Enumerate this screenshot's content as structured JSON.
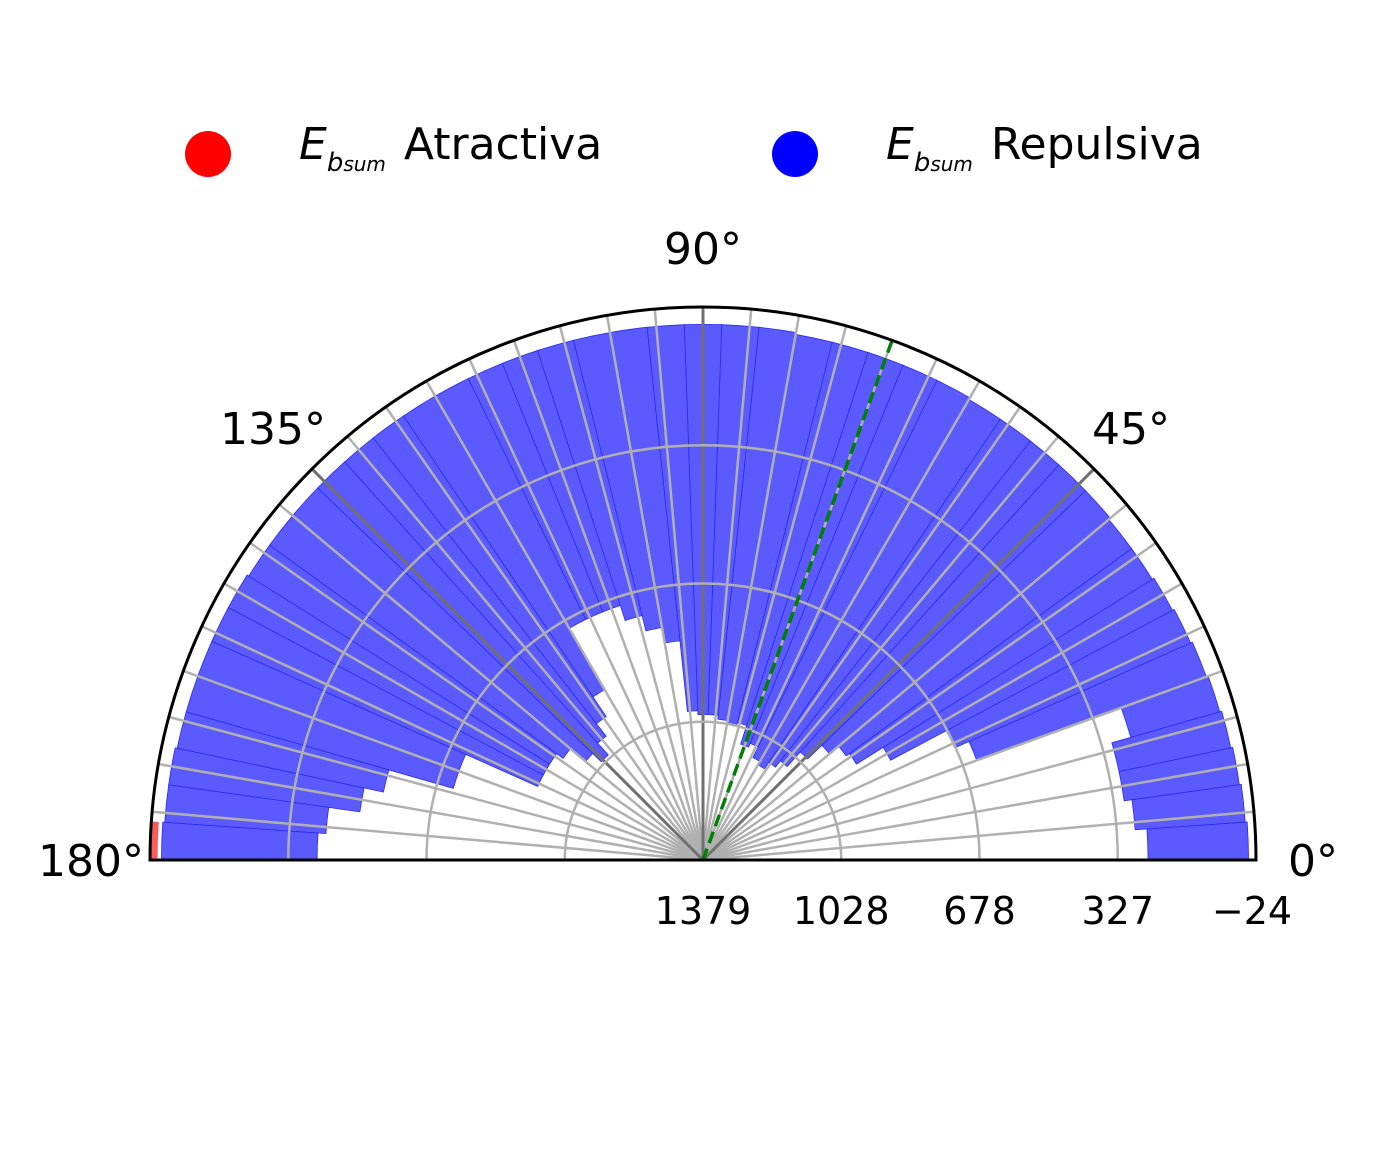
{
  "chart_data": {
    "type": "polar-bar",
    "legend": [
      {
        "symbol": "E",
        "subscript": "b",
        "subsubscript": "sum",
        "label": "Atractiva",
        "color": "#ff0000"
      },
      {
        "symbol": "E",
        "subscript": "b",
        "subsubscript": "sum",
        "label": "Repulsiva",
        "color": "#0000ff"
      }
    ],
    "theta_range": [
      0,
      180
    ],
    "theta_tick_labels": [
      "0°",
      "45°",
      "90°",
      "135°",
      "180°"
    ],
    "radial_tick_labels": [
      "1379",
      "1028",
      "678",
      "327",
      "−24"
    ],
    "radial_scale": {
      "center_value": 1379,
      "edge_value": -24
    },
    "bar_width_deg": 4,
    "bar_color": "#5a5aff",
    "attractive_color": "#ff5a5a",
    "bar_centers_deg": [
      2,
      6,
      10,
      14,
      18,
      22,
      26,
      30,
      34,
      38,
      42,
      46,
      50,
      54,
      58,
      62,
      66,
      70,
      74,
      78,
      82,
      86,
      90,
      94,
      98,
      102,
      106,
      110,
      114,
      118,
      122,
      126,
      130,
      134,
      138,
      142,
      146,
      150,
      154,
      158,
      162,
      166,
      170,
      174,
      178
    ],
    "repulsive_outer": [
      -5,
      0,
      5,
      10,
      15,
      20,
      25,
      30,
      35,
      35,
      30,
      30,
      30,
      30,
      30,
      25,
      25,
      25,
      25,
      25,
      20,
      20,
      20,
      20,
      20,
      20,
      20,
      20,
      20,
      20,
      20,
      20,
      20,
      20,
      20,
      20,
      20,
      15,
      15,
      15,
      15,
      15,
      10,
      10,
      5
    ],
    "repulsive_inner": [
      250,
      280,
      300,
      300,
      250,
      640,
      680,
      840,
      920,
      930,
      960,
      1010,
      1060,
      1080,
      1100,
      1090,
      1060,
      1070,
      1020,
      1030,
      1020,
      1010,
      1010,
      1000,
      820,
      780,
      740,
      700,
      700,
      700,
      880,
      940,
      980,
      1020,
      990,
      940,
      920,
      920,
      920,
      720,
      720,
      550,
      500,
      420,
      400
    ],
    "attractive_outer": [
      null,
      null,
      null,
      null,
      null,
      null,
      null,
      null,
      null,
      null,
      null,
      null,
      null,
      null,
      null,
      null,
      null,
      null,
      null,
      null,
      null,
      null,
      null,
      null,
      null,
      null,
      null,
      null,
      null,
      null,
      null,
      null,
      null,
      null,
      null,
      null,
      null,
      null,
      null,
      null,
      null,
      null,
      null,
      null,
      -5
    ],
    "attractive_inner": [
      null,
      null,
      null,
      null,
      null,
      null,
      null,
      null,
      null,
      null,
      null,
      null,
      null,
      null,
      null,
      null,
      null,
      null,
      null,
      null,
      null,
      null,
      null,
      null,
      null,
      null,
      null,
      null,
      null,
      null,
      null,
      null,
      null,
      null,
      null,
      null,
      null,
      null,
      null,
      null,
      null,
      null,
      null,
      null,
      -24
    ],
    "mean_line_deg": 70,
    "mean_line_color": "#008000"
  }
}
